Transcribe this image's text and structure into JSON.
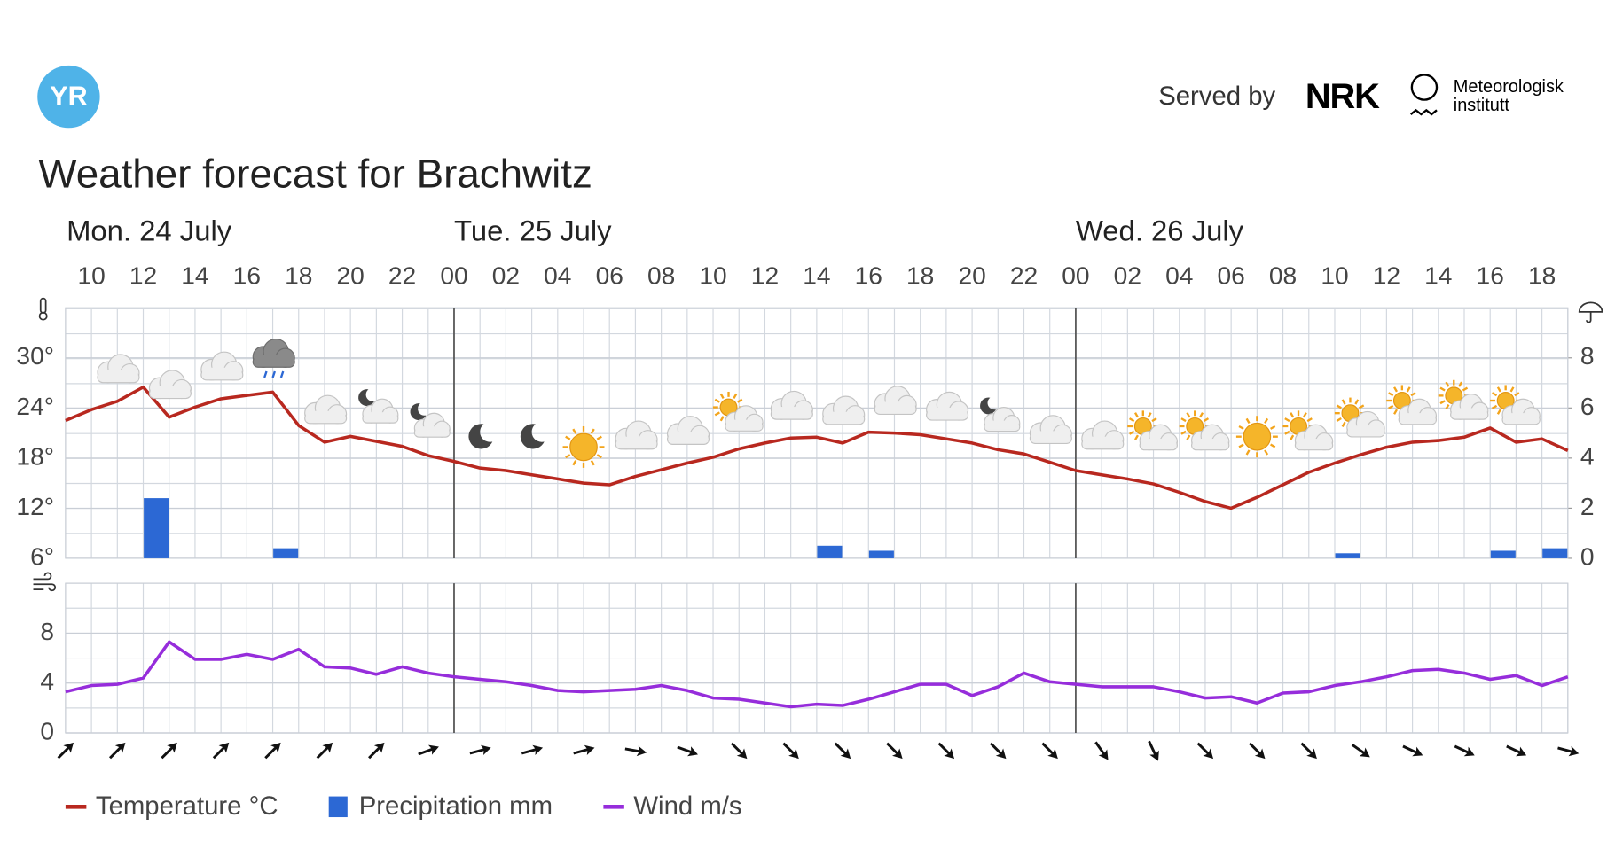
{
  "header": {
    "brand": "YR",
    "served_by": "Served by",
    "partner_1": "NRK",
    "partner_2": [
      "Meteorologisk",
      "institutt"
    ]
  },
  "chart_data": [
    {
      "type": "line",
      "title": "Weather forecast for Brachwitz",
      "days": [
        "Mon. 24 July",
        "Tue. 25 July",
        "Wed. 26 July"
      ],
      "categories": [
        null,
        "10",
        null,
        "12",
        null,
        "14",
        null,
        "16",
        null,
        "18",
        null,
        "20",
        null,
        "22",
        null,
        "00",
        null,
        "02",
        null,
        "04",
        null,
        "06",
        null,
        "08",
        null,
        "10",
        null,
        "12",
        null,
        "14",
        null,
        "16",
        null,
        "18",
        null,
        "20",
        null,
        "22",
        null,
        "00",
        null,
        "02",
        null,
        "04",
        null,
        "06",
        null,
        "08",
        null,
        "10",
        null,
        "12",
        null,
        "14",
        null,
        "16",
        null,
        "18",
        null
      ],
      "series": [
        {
          "name": "Temperature °C",
          "type": "line",
          "color": "#b8281f",
          "values": [
            22.5,
            23.8,
            24.8,
            26.5,
            22.9,
            24.1,
            25.1,
            25.5,
            25.9,
            21.9,
            19.9,
            20.6,
            20.0,
            19.4,
            18.3,
            17.6,
            16.8,
            16.5,
            16.0,
            15.5,
            15.0,
            14.8,
            15.8,
            16.6,
            17.4,
            18.1,
            19.1,
            19.8,
            20.4,
            20.5,
            19.8,
            21.1,
            21.0,
            20.8,
            20.3,
            19.8,
            19.0,
            18.5,
            17.5,
            16.5,
            16.0,
            15.5,
            14.9,
            13.9,
            12.8,
            12.0,
            13.3,
            14.8,
            16.3,
            17.4,
            18.4,
            19.3,
            19.9,
            20.1,
            20.5,
            21.6,
            19.9,
            20.3,
            18.9
          ]
        },
        {
          "name": "Precipitation mm",
          "type": "bar",
          "axis": "y2",
          "color": "#2c68d4",
          "values": [
            0,
            0,
            0,
            2.4,
            0,
            0,
            0,
            0,
            0.4,
            0,
            0,
            0,
            0,
            0,
            0,
            0,
            0,
            0,
            0,
            0,
            0,
            0,
            0,
            0,
            0,
            0,
            0,
            0,
            0,
            0.5,
            0,
            0.3,
            0,
            0,
            0,
            0,
            0,
            0,
            0,
            0,
            0,
            0,
            0,
            0,
            0,
            0,
            0,
            0,
            0,
            0.2,
            0,
            0,
            0,
            0,
            0,
            0.3,
            0,
            0.4,
            0
          ]
        }
      ],
      "ylim": [
        6,
        36
      ],
      "yticks": [
        {
          "value": 6,
          "label": "6°"
        },
        {
          "value": 12,
          "label": "12°"
        },
        {
          "value": 18,
          "label": "18°"
        },
        {
          "value": 24,
          "label": "24°"
        },
        {
          "value": 30,
          "label": "30°"
        }
      ],
      "y2lim": [
        0,
        10
      ],
      "y2ticks": [
        0,
        2,
        4,
        6,
        8
      ],
      "grid": true
    },
    {
      "type": "line",
      "series": [
        {
          "name": "Wind m/s",
          "color": "#962ddb",
          "values": [
            3.3,
            3.8,
            3.9,
            4.4,
            7.3,
            5.9,
            5.9,
            6.3,
            5.9,
            6.7,
            5.3,
            5.2,
            4.7,
            5.3,
            4.8,
            4.5,
            4.3,
            4.1,
            3.8,
            3.4,
            3.3,
            3.4,
            3.5,
            3.8,
            3.4,
            2.8,
            2.7,
            2.4,
            2.1,
            2.3,
            2.2,
            2.7,
            3.3,
            3.9,
            3.9,
            3.0,
            3.7,
            4.8,
            4.1,
            3.9,
            3.7,
            3.7,
            3.7,
            3.3,
            2.8,
            2.9,
            2.4,
            3.2,
            3.3,
            3.8,
            4.1,
            4.5,
            5.0,
            5.1,
            4.8,
            4.3,
            4.6,
            3.8,
            4.5
          ]
        }
      ],
      "arrow_angles": [
        -45,
        -45,
        -45,
        -45,
        -45,
        -45,
        -45,
        -20,
        -15,
        -15,
        -15,
        10,
        20,
        45,
        45,
        45,
        45,
        45,
        45,
        45,
        55,
        65,
        45,
        45,
        45,
        35,
        25,
        25,
        25,
        15
      ],
      "ylim": [
        0,
        12
      ],
      "yticks": [
        0,
        4,
        8
      ],
      "grid": true
    }
  ]
}
